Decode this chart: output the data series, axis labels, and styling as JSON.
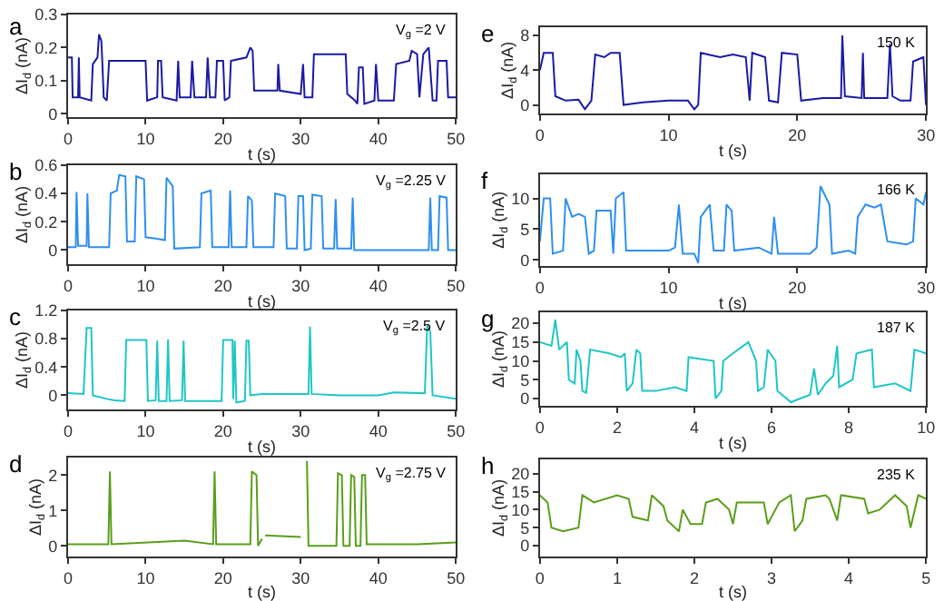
{
  "chart_data": [
    {
      "type": "line",
      "title": "a",
      "xlabel": "t (s)",
      "ylabel": "ΔI$_{d}$ (nA)",
      "annotations": [
        "V$_{g}$ =2 V"
      ],
      "xlim": [
        0,
        50
      ],
      "xticks": [
        0,
        10,
        20,
        30,
        40,
        50
      ],
      "ylim": [
        -0.01,
        0.3
      ],
      "yticks": [
        0,
        0.1,
        0.2,
        0.3
      ],
      "marker": "none",
      "line_style": "solid",
      "x": [
        0,
        0.5,
        0.6,
        1.3,
        1.4,
        1.5,
        3.0,
        3.2,
        3.8,
        4.0,
        4.3,
        4.4,
        4.6,
        5.0,
        5.3,
        10,
        10.2,
        11.5,
        11.6,
        12.0,
        12.2,
        14.0,
        14.2,
        14.4,
        15.8,
        16.0,
        16.3,
        17.8,
        18,
        18.3,
        19,
        19.2,
        20,
        20.2,
        20.8,
        21,
        23,
        23.5,
        23.8,
        24,
        27,
        27.1,
        27.3,
        30,
        30.3,
        30.5,
        31.5,
        31.7,
        35.8,
        36,
        37,
        37.3,
        37.5,
        38,
        38.2,
        39.5,
        39.7,
        40,
        42,
        42.3,
        44,
        44.3,
        45,
        45.3,
        45.8,
        46.5,
        47,
        47.5,
        47.7,
        48.8,
        49,
        50
      ],
      "series": [
        {
          "color": "#1a1aa6",
          "values": [
            0.17,
            0.17,
            0.05,
            0.05,
            0.17,
            0.05,
            0.04,
            0.15,
            0.17,
            0.24,
            0.22,
            0.17,
            0.05,
            0.04,
            0.16,
            0.16,
            0.04,
            0.05,
            0.16,
            0.16,
            0.05,
            0.04,
            0.16,
            0.05,
            0.05,
            0.16,
            0.05,
            0.05,
            0.17,
            0.05,
            0.05,
            0.16,
            0.16,
            0.04,
            0.05,
            0.16,
            0.17,
            0.2,
            0.19,
            0.07,
            0.07,
            0.15,
            0.07,
            0.06,
            0.15,
            0.05,
            0.05,
            0.18,
            0.18,
            0.06,
            0.04,
            0.03,
            0.14,
            0.14,
            0.03,
            0.04,
            0.15,
            0.04,
            0.04,
            0.15,
            0.16,
            0.19,
            0.18,
            0.05,
            0.18,
            0.2,
            0.04,
            0.04,
            0.16,
            0.16,
            0.05,
            0.05
          ]
        }
      ]
    },
    {
      "type": "line",
      "title": "b",
      "xlabel": "t (s)",
      "ylabel": "ΔI$_{d}$ (nA)",
      "annotations": [
        "V$_{g}$ =2.25 V"
      ],
      "xlim": [
        0,
        50
      ],
      "xticks": [
        0,
        10,
        20,
        30,
        40,
        50
      ],
      "ylim": [
        -0.1,
        0.6
      ],
      "yticks": [
        0,
        0.2,
        0.4,
        0.6
      ],
      "marker": "none",
      "line_style": "solid",
      "x": [
        0,
        1.0,
        1.1,
        1.3,
        2.4,
        2.5,
        2.7,
        5.3,
        5.5,
        6.3,
        6.6,
        7.4,
        7.6,
        8.6,
        8.8,
        9.8,
        10.0,
        11.5,
        12.5,
        12.7,
        13.5,
        13.7,
        17,
        17.2,
        18.4,
        18.6,
        20.7,
        20.9,
        21.1,
        23,
        23.2,
        23.7,
        23.9,
        26.5,
        26.7,
        28,
        28.2,
        29.5,
        29.7,
        30.3,
        30.5,
        31.3,
        31.5,
        32.7,
        32.9,
        34.3,
        34.5,
        34.7,
        36.5,
        36.7,
        36.9,
        46.5,
        46.7,
        46.9,
        47.7,
        47.9,
        48.8,
        49,
        50
      ],
      "series": [
        {
          "color": "#2e8ff0",
          "values": [
            0.02,
            0.02,
            0.41,
            0.03,
            0.03,
            0.4,
            0.02,
            0.02,
            0.4,
            0.42,
            0.53,
            0.52,
            0.06,
            0.06,
            0.52,
            0.5,
            0.09,
            0.08,
            0.07,
            0.51,
            0.45,
            0.01,
            0.02,
            0.4,
            0.42,
            0.02,
            0.02,
            0.42,
            0.02,
            0.02,
            0.38,
            0.35,
            0.02,
            0.02,
            0.4,
            0.38,
            0.01,
            0.01,
            0.38,
            0.38,
            0.0,
            0.01,
            0.39,
            0.38,
            0.01,
            0.01,
            0.36,
            0.01,
            0.01,
            0.37,
            0.0,
            0.0,
            0.37,
            0.0,
            0.0,
            0.38,
            0.37,
            0.0,
            0.0
          ]
        }
      ]
    },
    {
      "type": "line",
      "title": "c",
      "xlabel": "t (s)",
      "ylabel": "ΔI$_{d}$ (nA)",
      "annotations": [
        "V$_{g}$ =2.5 V"
      ],
      "xlim": [
        0,
        50
      ],
      "xticks": [
        0,
        10,
        20,
        30,
        40,
        50
      ],
      "ylim": [
        -0.2,
        1.2
      ],
      "yticks": [
        0,
        0.4,
        0.8,
        1.2
      ],
      "marker": "none",
      "line_style": "solid",
      "x": [
        0,
        2,
        2.4,
        3.0,
        3.2,
        5,
        6,
        7.3,
        7.5,
        10.1,
        10.3,
        11.3,
        11.5,
        11.7,
        12.7,
        12.9,
        13.1,
        14.7,
        14.9,
        15.1,
        19.8,
        20,
        21.2,
        21.3,
        21.5,
        21.7,
        22.8,
        23,
        23.3,
        23.5,
        25,
        31,
        31.2,
        31.4,
        35,
        40,
        42,
        46,
        46.3,
        46.7,
        47,
        50
      ],
      "series": [
        {
          "color": "#1ec6c6",
          "values": [
            0.03,
            0.02,
            0.95,
            0.95,
            0.0,
            -0.05,
            -0.07,
            -0.08,
            0.78,
            0.78,
            -0.08,
            -0.07,
            0.77,
            -0.08,
            -0.08,
            0.79,
            -0.08,
            -0.07,
            0.77,
            -0.08,
            -0.08,
            0.78,
            0.78,
            -0.05,
            0.77,
            -0.1,
            -0.08,
            0.77,
            0.77,
            0.0,
            0.02,
            0.02,
            0.97,
            0.02,
            0.0,
            0.0,
            0.04,
            0.03,
            0.98,
            0.9,
            0.0,
            -0.05
          ]
        }
      ]
    },
    {
      "type": "line",
      "title": "d",
      "xlabel": "t (s)",
      "ylabel": "ΔI$_{d}$ (nA)",
      "annotations": [
        "V$_{g}$ =2.75 V"
      ],
      "xlim": [
        0,
        50
      ],
      "xticks": [
        0,
        10,
        20,
        30,
        40,
        50
      ],
      "ylim": [
        -0.3,
        2.5
      ],
      "yticks": [
        0,
        1,
        2
      ],
      "marker": "none",
      "line_style": "solid",
      "x": [
        0,
        5.2,
        5.4,
        5.6,
        15,
        18.7,
        18.9,
        19.1,
        23.5,
        23.7,
        24.3,
        24.5,
        25.0,
        25.2,
        25.4,
        30,
        30.2,
        30.8,
        31,
        34.6,
        34.8,
        35.3,
        35.5,
        36.3,
        36.5,
        36.9,
        37.1,
        37.7,
        37.9,
        38.3,
        38.5,
        45,
        50
      ],
      "series": [
        {
          "color": "#5a9e1a",
          "values": [
            0.05,
            0.05,
            2.1,
            0.05,
            0.15,
            0.05,
            2.1,
            0.05,
            0.05,
            2.1,
            2.0,
            0.0,
            0.2,
            null,
            0.3,
            0.25,
            null,
            2.4,
            0.0,
            0.0,
            2.05,
            2.0,
            0.0,
            0.0,
            2.0,
            1.95,
            0.0,
            0.0,
            2.0,
            2.0,
            0.05,
            0.05,
            0.1
          ]
        }
      ]
    },
    {
      "type": "line",
      "title": "e",
      "xlabel": "t (s)",
      "ylabel": "ΔI$_{d}$ (nA)",
      "annotations": [
        "150 K"
      ],
      "xlim": [
        0,
        30
      ],
      "xticks": [
        0,
        10,
        20,
        30
      ],
      "ylim": [
        -1,
        9
      ],
      "yticks": [
        0,
        4,
        8
      ],
      "marker": "none",
      "line_style": "solid",
      "x": [
        0,
        0.3,
        1,
        1.2,
        2,
        3,
        3.5,
        4,
        4.3,
        5,
        5.5,
        6.2,
        6.5,
        8,
        10,
        11.5,
        12,
        12.3,
        12.5,
        14,
        15,
        16,
        16.3,
        16.5,
        17.5,
        17.8,
        18.5,
        18.8,
        20,
        20.3,
        22,
        23.4,
        23.5,
        23.7,
        25,
        25.1,
        25.2,
        27,
        27.2,
        27.4,
        28,
        28.8,
        29,
        29.8,
        30
      ],
      "series": [
        {
          "color": "#1a1aa6",
          "values": [
            4,
            6,
            6,
            1,
            0.5,
            0.6,
            -0.5,
            0.5,
            5.8,
            5.5,
            6,
            6,
            0,
            0.3,
            0.5,
            0.5,
            -0.5,
            0,
            6,
            5.5,
            5.8,
            5.5,
            0.5,
            6,
            5.5,
            0.5,
            0.3,
            6,
            5.8,
            0.5,
            0.8,
            0.8,
            8,
            1,
            0.8,
            6,
            0.8,
            0.8,
            7,
            1,
            0.5,
            0.5,
            5,
            5.5,
            0
          ]
        }
      ]
    },
    {
      "type": "line",
      "title": "f",
      "xlabel": "t (s)",
      "ylabel": "ΔI$_{d}$ (nA)",
      "annotations": [
        "166 K"
      ],
      "xlim": [
        0,
        30
      ],
      "xticks": [
        0,
        10,
        20,
        30
      ],
      "ylim": [
        -1,
        14
      ],
      "yticks": [
        0,
        5,
        10
      ],
      "marker": "none",
      "line_style": "solid",
      "x": [
        0,
        0.3,
        0.8,
        1,
        1.8,
        2,
        2.5,
        3,
        3.5,
        3.8,
        4.2,
        4.4,
        5.5,
        5.7,
        5.9,
        6.5,
        6.7,
        8,
        10,
        10.5,
        10.8,
        11.1,
        12,
        12.3,
        12.5,
        13.2,
        13.5,
        14.3,
        14.5,
        14.9,
        15.1,
        17,
        18,
        18.2,
        18.5,
        21,
        21.5,
        21.8,
        22.5,
        22.7,
        24,
        24.5,
        24.7,
        25.3,
        26,
        26.5,
        27,
        28.5,
        29,
        29.2,
        29.8,
        30
      ],
      "series": [
        {
          "color": "#2e8ff0",
          "values": [
            3,
            10,
            10,
            1,
            1.5,
            10,
            7,
            7.5,
            7,
            1,
            1.5,
            8,
            8,
            1,
            10,
            11,
            1.5,
            1.5,
            1.5,
            2,
            9,
            1,
            1,
            -0.5,
            7,
            9,
            1.5,
            1.5,
            9,
            8,
            1.5,
            2,
            1,
            7,
            1,
            1,
            2,
            12,
            9,
            1,
            1.5,
            1,
            7,
            9,
            8.5,
            9,
            3,
            2.5,
            3,
            10,
            9,
            11
          ]
        }
      ]
    },
    {
      "type": "line",
      "title": "g",
      "xlabel": "t (s)",
      "ylabel": "ΔI$_{d}$ (nA)",
      "annotations": [
        "187 K"
      ],
      "xlim": [
        0,
        10
      ],
      "xticks": [
        0,
        2,
        4,
        6,
        8,
        10
      ],
      "ylim": [
        -2,
        23
      ],
      "yticks": [
        0,
        5,
        10,
        15,
        20
      ],
      "marker": "none",
      "line_style": "solid",
      "x": [
        0,
        0.3,
        0.4,
        0.5,
        0.7,
        0.75,
        0.9,
        0.95,
        1.05,
        1.1,
        1.2,
        1.3,
        1.8,
        2.1,
        2.2,
        2.25,
        2.4,
        2.5,
        2.6,
        2.65,
        3,
        3.5,
        3.8,
        3.85,
        4.5,
        4.55,
        4.7,
        4.75,
        5,
        5.4,
        5.6,
        5.65,
        5.8,
        5.9,
        6.1,
        6.15,
        6.5,
        7,
        7.1,
        7.2,
        7.4,
        7.6,
        7.7,
        7.75,
        8.1,
        8.2,
        8.6,
        8.65,
        9.2,
        9.6,
        9.7,
        10
      ],
      "series": [
        {
          "color": "#1ec6c6",
          "values": [
            15,
            14,
            21,
            13,
            15,
            5,
            4,
            13,
            10,
            2,
            1.5,
            13,
            12,
            11,
            12,
            2,
            4,
            13,
            12,
            2,
            2,
            3,
            2,
            11,
            10,
            0,
            2,
            10,
            12,
            15,
            10,
            2,
            3,
            13,
            10,
            2,
            -1,
            1,
            8,
            1,
            4,
            6,
            14,
            3,
            5,
            12,
            13,
            3,
            4,
            2,
            13,
            12
          ]
        }
      ]
    },
    {
      "type": "line",
      "title": "h",
      "xlabel": "t (s)",
      "ylabel": "ΔI$_{d}$ (nA)",
      "annotations": [
        "235 K"
      ],
      "xlim": [
        0,
        5
      ],
      "xticks": [
        0,
        1,
        2,
        3,
        4,
        5
      ],
      "ylim": [
        -3,
        24
      ],
      "yticks": [
        0,
        5,
        10,
        15,
        20
      ],
      "marker": "none",
      "line_style": "solid",
      "x": [
        0,
        0.1,
        0.15,
        0.3,
        0.5,
        0.55,
        0.7,
        1,
        1.15,
        1.2,
        1.4,
        1.45,
        1.6,
        1.65,
        1.8,
        1.85,
        1.95,
        2.1,
        2.15,
        2.3,
        2.45,
        2.5,
        2.55,
        2.9,
        2.95,
        3.05,
        3.1,
        3.25,
        3.3,
        3.4,
        3.45,
        3.7,
        3.75,
        3.85,
        3.9,
        4.2,
        4.25,
        4.4,
        4.6,
        4.75,
        4.8,
        4.9,
        5
      ],
      "series": [
        {
          "color": "#5a9e1a",
          "values": [
            14,
            12,
            5,
            4,
            5,
            14,
            12,
            14,
            13,
            8,
            7,
            14,
            11,
            7,
            4,
            10,
            6,
            6,
            12,
            13,
            10,
            6,
            12,
            12,
            6,
            10,
            12,
            14,
            4,
            7,
            13,
            14,
            13,
            7,
            14,
            13,
            9,
            10,
            14,
            11,
            5,
            14,
            13
          ]
        }
      ]
    }
  ]
}
